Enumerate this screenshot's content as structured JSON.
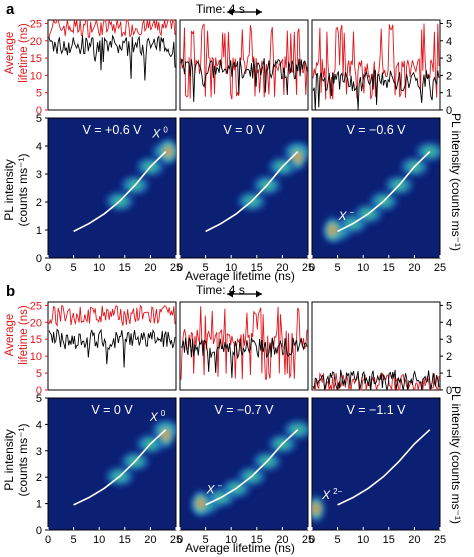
{
  "figure": {
    "time_scale_label": "Time: 4 s",
    "avg_lifetime_label_line1": "Average",
    "avg_lifetime_label_line2": "lifetime (ns)",
    "pl_intensity_right_label": "PL intensity (counts ms⁻¹)",
    "pl_intensity_left_label_line1": "PL intensity",
    "pl_intensity_left_label_line2": "(counts ms⁻¹)",
    "heatmap_xlabel": "Average lifetime (ns)",
    "colors": {
      "lifetime_trace": "#e0161c",
      "intensity_trace": "#000000",
      "heatmap_background": "#0b1f73",
      "fit_curve": "#ffffff"
    }
  },
  "chart_data": [
    {
      "panel": "a",
      "type": "line",
      "row": "time traces",
      "time_scale_bar": "4 s",
      "y_left": {
        "label": "Average lifetime (ns)",
        "ylim": [
          0,
          26
        ],
        "ticks": [
          0,
          5,
          10,
          15,
          20,
          25
        ]
      },
      "y_right": {
        "label": "PL intensity (counts ms⁻¹)",
        "ylim": [
          0,
          5.2
        ],
        "ticks": [
          0,
          1,
          2,
          3,
          4,
          5
        ]
      },
      "subpanels": [
        {
          "voltage": "+0.6 V",
          "lifetime_mean": 24,
          "intensity_mean": 3.7
        },
        {
          "voltage": "0 V",
          "lifetime_mean": 13,
          "intensity_mean": 2.4
        },
        {
          "voltage": "−0.6 V",
          "lifetime_mean": 12,
          "intensity_mean": 1.7
        }
      ]
    },
    {
      "panel": "a",
      "type": "heatmap",
      "row": "density maps",
      "xlabel": "Average lifetime (ns)",
      "ylabel": "PL intensity (counts ms⁻¹)",
      "xlim": [
        0,
        25
      ],
      "ylim": [
        0,
        5
      ],
      "xticks": [
        0,
        5,
        10,
        15,
        20,
        25
      ],
      "yticks": [
        0,
        1,
        2,
        3,
        4,
        5
      ],
      "fit_curve": {
        "x": [
          5,
          8,
          11,
          14,
          17,
          20,
          23
        ],
        "y": [
          0.95,
          1.23,
          1.58,
          2.03,
          2.6,
          3.26,
          3.8
        ]
      },
      "subpanels": [
        {
          "voltage_label": "V = +0.6 V",
          "state_label": "X",
          "state_sup": "0",
          "peak": [
            23.5,
            3.8
          ]
        },
        {
          "voltage_label": "V = 0 V",
          "state_label": "",
          "state_sup": "",
          "peak": [
            23,
            3.6
          ]
        },
        {
          "voltage_label": "V = −0.6 V",
          "state_label": "X",
          "state_sup": "−",
          "peak": [
            4,
            1.0
          ]
        }
      ]
    },
    {
      "panel": "b",
      "type": "line",
      "row": "time traces",
      "time_scale_bar": "4 s",
      "y_left": {
        "label": "Average lifetime (ns)",
        "ylim": [
          0,
          26
        ],
        "ticks": [
          0,
          5,
          10,
          15,
          20,
          25
        ]
      },
      "y_right": {
        "label": "PL intensity (counts ms⁻¹)",
        "ylim": [
          0,
          5.2
        ],
        "ticks": [
          0,
          1,
          2,
          3,
          4,
          5
        ]
      },
      "subpanels": [
        {
          "voltage": "0 V",
          "lifetime_mean": 22,
          "intensity_mean": 3.0
        },
        {
          "voltage": "−0.7 V",
          "lifetime_mean": 15,
          "intensity_mean": 2.5
        },
        {
          "voltage": "−1.1 V",
          "lifetime_mean": 2,
          "intensity_mean": 0.6
        }
      ]
    },
    {
      "panel": "b",
      "type": "heatmap",
      "row": "density maps",
      "xlabel": "Average lifetime (ns)",
      "ylabel": "PL intensity (counts ms⁻¹)",
      "xlim": [
        0,
        25
      ],
      "ylim": [
        0,
        5
      ],
      "xticks": [
        0,
        5,
        10,
        15,
        20,
        25
      ],
      "yticks": [
        0,
        1,
        2,
        3,
        4,
        5
      ],
      "fit_curve": {
        "x": [
          5,
          8,
          11,
          14,
          17,
          20,
          23
        ],
        "y": [
          0.95,
          1.23,
          1.58,
          2.03,
          2.6,
          3.26,
          3.8
        ]
      },
      "subpanels": [
        {
          "voltage_label": "V = 0 V",
          "state_label": "X",
          "state_sup": "0",
          "peak": [
            23,
            3.6
          ]
        },
        {
          "voltage_label": "V = −0.7 V",
          "state_label": "X",
          "state_sup": "−",
          "peak": [
            4,
            1.0
          ]
        },
        {
          "voltage_label": "V = −1.1 V",
          "state_label": "X",
          "state_sup": "2−",
          "peak": [
            0.8,
            0.8
          ]
        }
      ]
    }
  ]
}
